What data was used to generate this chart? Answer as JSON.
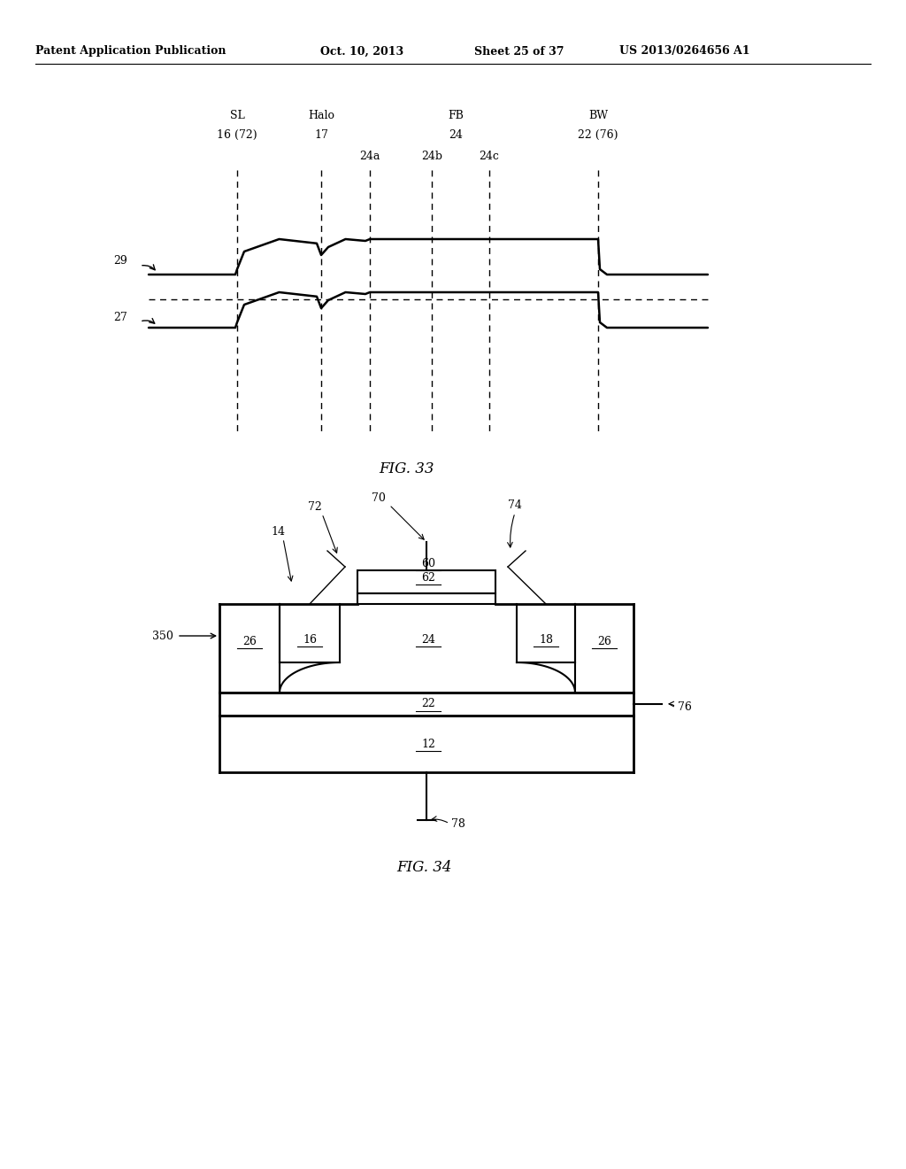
{
  "bg_color": "#ffffff",
  "header_text": "Patent Application Publication",
  "header_date": "Oct. 10, 2013",
  "header_sheet": "Sheet 25 of 37",
  "header_patent": "US 2013/0264656 A1",
  "fig33_label": "FIG. 33",
  "fig34_label": "FIG. 34"
}
